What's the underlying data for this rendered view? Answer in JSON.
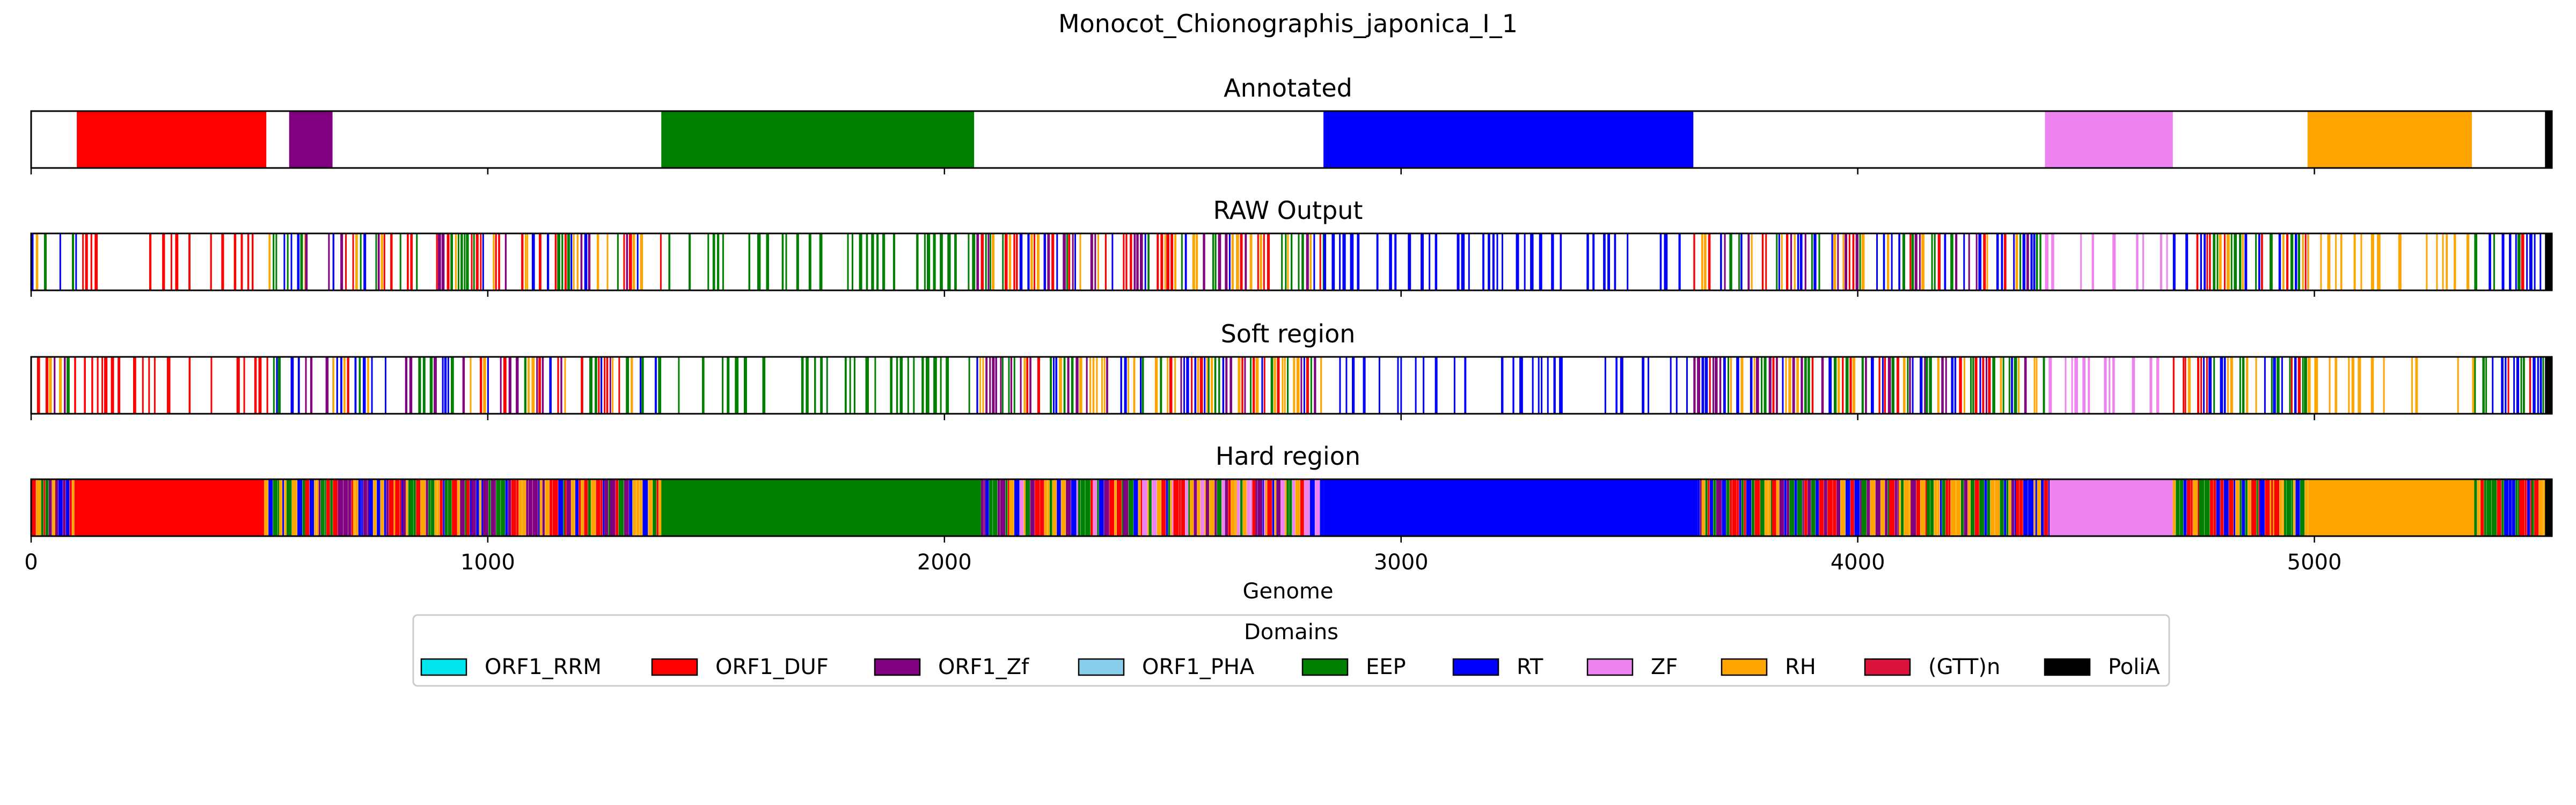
{
  "chart_data": {
    "type": "genome-domain-tracks",
    "title": "Monocot_Chionographis_japonica_I_1",
    "xlabel": "Genome",
    "xlim": [
      0,
      5520
    ],
    "xticks": [
      0,
      1000,
      2000,
      3000,
      4000,
      5000
    ],
    "grid": "x dashed",
    "legend": {
      "title": "Domains",
      "placement": "bottom-center",
      "entries": [
        {
          "name": "ORF1_RRM",
          "color": "#00e5ee"
        },
        {
          "name": "ORF1_DUF",
          "color": "#ff0000"
        },
        {
          "name": "ORF1_Zf",
          "color": "#800080"
        },
        {
          "name": "ORF1_PHA",
          "color": "#87ceeb"
        },
        {
          "name": "EEP",
          "color": "#008000"
        },
        {
          "name": "RT",
          "color": "#0000ff"
        },
        {
          "name": "ZF",
          "color": "#ee82ee"
        },
        {
          "name": "RH",
          "color": "#ffa500"
        },
        {
          "name": "(GTT)n",
          "color": "#dc143c"
        },
        {
          "name": "PoliA",
          "color": "#000000"
        }
      ]
    },
    "tracks": [
      {
        "name": "Annotated",
        "segments": [
          {
            "domain": "ORF1_DUF",
            "start": 100,
            "end": 515
          },
          {
            "domain": "ORF1_Zf",
            "start": 565,
            "end": 660
          },
          {
            "domain": "EEP",
            "start": 1380,
            "end": 2065
          },
          {
            "domain": "RT",
            "start": 2830,
            "end": 3640
          },
          {
            "domain": "ZF",
            "start": 4410,
            "end": 4690
          },
          {
            "domain": "RH",
            "start": 4985,
            "end": 5345
          },
          {
            "domain": "PoliA",
            "start": 5505,
            "end": 5520
          }
        ]
      },
      {
        "name": "RAW Output",
        "pattern": "sparse",
        "regions": [
          {
            "start": 0,
            "end": 100,
            "mix": [
              "EEP",
              "RT",
              "ORF1_DUF",
              "RH",
              "ORF1_Zf"
            ]
          },
          {
            "start": 100,
            "end": 520,
            "main": "ORF1_DUF"
          },
          {
            "start": 520,
            "end": 600,
            "mix": [
              "EEP",
              "RH",
              "RT"
            ]
          },
          {
            "start": 600,
            "end": 660,
            "main": "ORF1_Zf"
          },
          {
            "start": 660,
            "end": 1380,
            "mix": [
              "EEP",
              "RT",
              "ORF1_Zf",
              "ORF1_DUF",
              "RH"
            ]
          },
          {
            "start": 1380,
            "end": 2070,
            "main": "EEP"
          },
          {
            "start": 2070,
            "end": 2830,
            "mix": [
              "EEP",
              "RT",
              "ORF1_DUF",
              "ORF1_Zf",
              "RH"
            ]
          },
          {
            "start": 2830,
            "end": 3640,
            "main": "RT"
          },
          {
            "start": 3640,
            "end": 4410,
            "mix": [
              "EEP",
              "RT",
              "ORF1_DUF",
              "RH",
              "ORF1_Zf"
            ]
          },
          {
            "start": 4410,
            "end": 4690,
            "main": "ZF"
          },
          {
            "start": 4690,
            "end": 4985,
            "mix": [
              "EEP",
              "RT",
              "ORF1_DUF",
              "RH"
            ]
          },
          {
            "start": 4985,
            "end": 5350,
            "main": "RH"
          },
          {
            "start": 5350,
            "end": 5505,
            "mix": [
              "RT",
              "EEP",
              "ORF1_DUF"
            ]
          },
          {
            "start": 5505,
            "end": 5520,
            "main": "PoliA"
          }
        ]
      },
      {
        "name": "Soft region",
        "pattern": "sparse",
        "regions": [
          {
            "start": 0,
            "end": 100,
            "mix": [
              "EEP",
              "RT",
              "ORF1_DUF",
              "RH",
              "ORF1_Zf"
            ]
          },
          {
            "start": 100,
            "end": 520,
            "main": "ORF1_DUF"
          },
          {
            "start": 520,
            "end": 600,
            "mix": [
              "EEP",
              "RH",
              "RT"
            ]
          },
          {
            "start": 600,
            "end": 660,
            "main": "ORF1_Zf"
          },
          {
            "start": 660,
            "end": 1380,
            "mix": [
              "EEP",
              "RT",
              "ORF1_Zf",
              "ORF1_DUF",
              "RH"
            ]
          },
          {
            "start": 1380,
            "end": 2070,
            "main": "EEP"
          },
          {
            "start": 2070,
            "end": 2830,
            "mix": [
              "EEP",
              "RT",
              "ORF1_DUF",
              "ORF1_Zf",
              "RH"
            ]
          },
          {
            "start": 2830,
            "end": 3640,
            "main": "RT"
          },
          {
            "start": 3640,
            "end": 4410,
            "mix": [
              "EEP",
              "RT",
              "ORF1_DUF",
              "RH",
              "ORF1_Zf"
            ]
          },
          {
            "start": 4410,
            "end": 4690,
            "main": "ZF"
          },
          {
            "start": 4690,
            "end": 4985,
            "mix": [
              "EEP",
              "RT",
              "ORF1_DUF",
              "RH"
            ]
          },
          {
            "start": 4985,
            "end": 5350,
            "main": "RH"
          },
          {
            "start": 5350,
            "end": 5505,
            "mix": [
              "RT",
              "EEP",
              "ORF1_DUF"
            ]
          },
          {
            "start": 5505,
            "end": 5520,
            "main": "PoliA"
          }
        ]
      },
      {
        "name": "Hard region",
        "pattern": "dense",
        "regions": [
          {
            "start": 0,
            "end": 95,
            "mix": [
              "EEP",
              "RT",
              "RH",
              "ORF1_DUF",
              "ORF1_Zf"
            ]
          },
          {
            "start": 95,
            "end": 510,
            "main": "ORF1_DUF"
          },
          {
            "start": 510,
            "end": 600,
            "mix": [
              "EEP",
              "RH",
              "ORF1_DUF",
              "RT"
            ]
          },
          {
            "start": 600,
            "end": 1380,
            "mix": [
              "EEP",
              "RT",
              "ORF1_Zf",
              "ORF1_DUF",
              "RH"
            ]
          },
          {
            "start": 1380,
            "end": 2080,
            "main": "EEP"
          },
          {
            "start": 2080,
            "end": 2830,
            "mix": [
              "EEP",
              "RT",
              "ORF1_DUF",
              "ORF1_Zf",
              "RH",
              "ZF"
            ]
          },
          {
            "start": 2830,
            "end": 3650,
            "main": "RT"
          },
          {
            "start": 3650,
            "end": 4420,
            "mix": [
              "EEP",
              "RT",
              "ORF1_DUF",
              "RH",
              "ORF1_Zf"
            ]
          },
          {
            "start": 4420,
            "end": 4690,
            "main": "ZF"
          },
          {
            "start": 4690,
            "end": 4990,
            "mix": [
              "EEP",
              "RT",
              "ORF1_DUF",
              "RH"
            ]
          },
          {
            "start": 4990,
            "end": 5350,
            "main": "RH"
          },
          {
            "start": 5350,
            "end": 5505,
            "mix": [
              "RT",
              "EEP",
              "ORF1_DUF",
              "RH"
            ]
          },
          {
            "start": 5505,
            "end": 5520,
            "main": "PoliA"
          }
        ]
      }
    ]
  }
}
